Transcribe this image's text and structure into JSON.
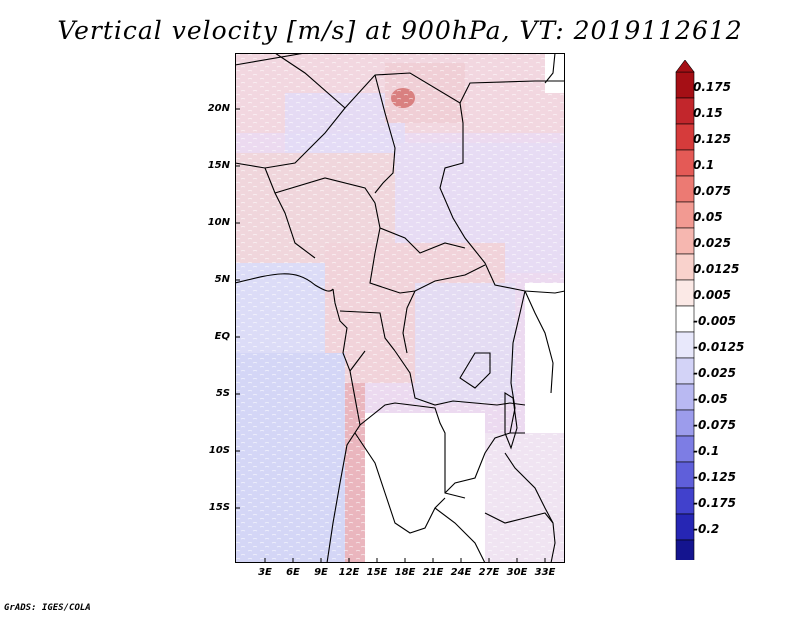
{
  "title": "Vertical velocity [m/s] at 900hPa, VT: 2019112612",
  "footer": "GrADS: IGES/COLA",
  "map": {
    "lat_labels": [
      "20N",
      "15N",
      "10N",
      "5N",
      "EQ",
      "5S",
      "10S",
      "15S"
    ],
    "lon_labels": [
      "3E",
      "6E",
      "9E",
      "12E",
      "15E",
      "18E",
      "21E",
      "24E",
      "27E",
      "30E",
      "33E"
    ]
  },
  "colorbar": {
    "labels": [
      "0.175",
      "0.15",
      "0.125",
      "0.1",
      "0.075",
      "0.05",
      "0.025",
      "0.0125",
      "0.005",
      "-0.005",
      "-0.0125",
      "-0.025",
      "-0.05",
      "-0.075",
      "-0.1",
      "-0.125",
      "-0.175",
      "-0.2"
    ],
    "colors": [
      "#a50f15",
      "#c2262c",
      "#d63b3b",
      "#e45a56",
      "#ec7a73",
      "#f29a92",
      "#f6b7b0",
      "#f9d2cc",
      "#fbe9e6",
      "#ffffff",
      "#e8e8fb",
      "#d3d3f7",
      "#b9b9f2",
      "#9c9cec",
      "#7d7de4",
      "#5f5fda",
      "#4141cc",
      "#2626b4",
      "#14148f"
    ]
  }
}
